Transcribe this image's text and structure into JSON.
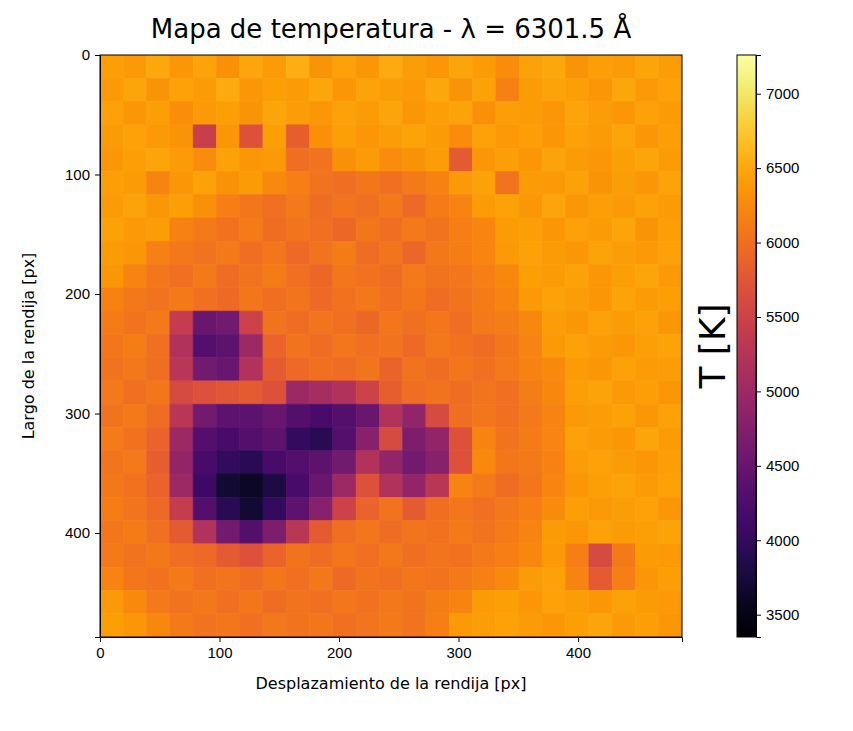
{
  "chart_data": {
    "type": "heatmap",
    "title": "Mapa de temperatura - λ = 6301.5 Å",
    "xlabel": "Desplazamiento de la rendija [px]",
    "ylabel": "Largo de la rendija [px]",
    "xlim": [
      0,
      487
    ],
    "ylim": [
      487,
      0
    ],
    "xticks": [
      0,
      100,
      200,
      300,
      400
    ],
    "yticks": [
      0,
      100,
      200,
      300,
      400
    ],
    "color": "inferno",
    "colorbar": {
      "label": "T [K]",
      "range": [
        3350,
        7260
      ],
      "ticks": [
        3500,
        4000,
        4500,
        5000,
        5500,
        6000,
        6500,
        7000
      ]
    },
    "cells": [
      [
        6420,
        6380,
        6510,
        6350,
        6460,
        6300,
        6490,
        6400,
        6550,
        6330,
        6440,
        6370,
        6520,
        6410,
        6360,
        6480,
        6390,
        6270,
        6450,
        6500,
        6340,
        6430,
        6390,
        6470,
        6410
      ],
      [
        6380,
        6470,
        6340,
        6450,
        6390,
        6520,
        6360,
        6430,
        6400,
        6490,
        6350,
        6460,
        6410,
        6380,
        6500,
        6330,
        6440,
        6170,
        6390,
        6460,
        6420,
        6350,
        6490,
        6380,
        6450
      ],
      [
        6450,
        6360,
        6430,
        6290,
        6380,
        6420,
        6330,
        6470,
        6410,
        6360,
        6440,
        6390,
        6480,
        6350,
        6420,
        6460,
        6310,
        6430,
        6390,
        6350,
        6470,
        6410,
        6360,
        6440,
        6400
      ],
      [
        6400,
        6450,
        6380,
        6340,
        5450,
        6360,
        5700,
        6420,
        5850,
        6300,
        6430,
        6370,
        6410,
        6460,
        6390,
        6280,
        6450,
        6380,
        6420,
        6360,
        6440,
        6390,
        6470,
        6350,
        6420
      ],
      [
        6360,
        6420,
        6470,
        6390,
        6280,
        6440,
        6350,
        6380,
        6000,
        6050,
        6300,
        6400,
        6280,
        6320,
        6410,
        5800,
        6370,
        6430,
        6350,
        6460,
        6400,
        6370,
        6420,
        6480,
        6390
      ],
      [
        6430,
        6390,
        6200,
        6360,
        6450,
        6320,
        6400,
        6250,
        6150,
        6050,
        6000,
        6080,
        6020,
        6100,
        6180,
        6380,
        6440,
        6050,
        6400,
        6380,
        6450,
        6340,
        6410,
        6370,
        6460
      ],
      [
        6390,
        6460,
        6350,
        6420,
        6300,
        6150,
        6080,
        6020,
        6100,
        5980,
        6060,
        6010,
        6090,
        5950,
        6120,
        6200,
        6390,
        6440,
        6360,
        6470,
        6350,
        6420,
        6380,
        6450,
        6400
      ],
      [
        6450,
        6380,
        6410,
        6180,
        6100,
        6030,
        6120,
        5990,
        6060,
        6010,
        5940,
        6080,
        6000,
        6110,
        6040,
        6150,
        6220,
        6400,
        6430,
        6360,
        6440,
        6390,
        6470,
        6330,
        6420
      ],
      [
        6400,
        6350,
        6170,
        6090,
        6040,
        6110,
        6000,
        6070,
        5960,
        6050,
        6120,
        5980,
        6060,
        5930,
        6090,
        6130,
        6210,
        6380,
        6450,
        6400,
        6370,
        6460,
        6410,
        6380,
        6440
      ],
      [
        6370,
        6200,
        6080,
        6020,
        6100,
        5990,
        6050,
        6120,
        6010,
        5940,
        6070,
        6030,
        5980,
        6100,
        6040,
        6080,
        6160,
        6230,
        6420,
        6390,
        6450,
        6350,
        6430,
        6470,
        6380
      ],
      [
        6180,
        6090,
        6040,
        6110,
        6020,
        5970,
        6080,
        6000,
        6060,
        5950,
        6030,
        6090,
        6010,
        6070,
        5990,
        6050,
        6120,
        6200,
        6380,
        6440,
        6410,
        6370,
        6460,
        6390,
        6420
      ],
      [
        6120,
        6050,
        6100,
        5400,
        4500,
        4600,
        5500,
        6050,
        5980,
        6060,
        6010,
        5940,
        6080,
        6020,
        6070,
        6000,
        6100,
        6140,
        6230,
        6410,
        6360,
        6440,
        6390,
        6450,
        6370
      ],
      [
        6080,
        6130,
        6020,
        5200,
        4300,
        4400,
        5000,
        5900,
        6040,
        5990,
        6070,
        6010,
        6050,
        5960,
        6090,
        6030,
        5990,
        6080,
        6200,
        6380,
        6450,
        6400,
        6350,
        6420,
        6460
      ],
      [
        6040,
        6090,
        6000,
        5300,
        4600,
        4500,
        5200,
        5800,
        5950,
        6020,
        5980,
        6060,
        5900,
        6040,
        5990,
        6070,
        6020,
        6110,
        6180,
        6250,
        6400,
        6370,
        6440,
        6390,
        6410
      ],
      [
        6100,
        6020,
        6070,
        5600,
        5700,
        5750,
        5800,
        5700,
        5000,
        5100,
        5200,
        5500,
        5850,
        6000,
        6050,
        5980,
        6060,
        6020,
        6130,
        6230,
        6420,
        6460,
        6380,
        6430,
        6370
      ],
      [
        6050,
        6110,
        5980,
        5300,
        4600,
        4400,
        4400,
        4500,
        4300,
        4200,
        4300,
        4500,
        5200,
        4900,
        5600,
        6000,
        6080,
        6010,
        6100,
        6200,
        6380,
        6410,
        6450,
        6360,
        6440
      ],
      [
        6120,
        6030,
        5900,
        5000,
        4300,
        4200,
        4300,
        4400,
        4000,
        3900,
        4300,
        4800,
        5600,
        4700,
        4900,
        5700,
        6200,
        6050,
        6120,
        6210,
        6440,
        6390,
        6360,
        6470,
        6400
      ],
      [
        6060,
        6100,
        5850,
        4900,
        4200,
        4000,
        3900,
        4200,
        4300,
        4400,
        4600,
        5200,
        4900,
        4600,
        4800,
        5700,
        6250,
        6070,
        6100,
        6180,
        6410,
        6450,
        6400,
        6350,
        6430
      ],
      [
        6090,
        6030,
        5900,
        5000,
        4100,
        3700,
        3600,
        3800,
        4200,
        4500,
        5000,
        5700,
        5200,
        4900,
        5300,
        6200,
        6100,
        5990,
        6080,
        6220,
        6370,
        6420,
        6460,
        6390,
        6440
      ],
      [
        6130,
        6060,
        5950,
        5400,
        4300,
        3900,
        3700,
        4000,
        4400,
        4800,
        5500,
        5900,
        6050,
        5800,
        6000,
        6080,
        6020,
        6090,
        6150,
        6260,
        6430,
        6380,
        6410,
        6450,
        6370
      ],
      [
        6070,
        6120,
        6010,
        5800,
        5200,
        4600,
        4300,
        4700,
        5300,
        5800,
        6000,
        6080,
        5990,
        6060,
        6030,
        6100,
        6040,
        6120,
        6200,
        6400,
        6350,
        6440,
        6390,
        6420,
        6460
      ],
      [
        6110,
        6040,
        6090,
        6000,
        5950,
        5800,
        5700,
        5900,
        6050,
        5980,
        6070,
        6020,
        6090,
        6000,
        6060,
        6030,
        6100,
        6150,
        6230,
        6380,
        6150,
        5600,
        6100,
        6400,
        6380
      ],
      [
        6200,
        6080,
        6030,
        6100,
        6010,
        6060,
        5990,
        6070,
        6020,
        6090,
        5960,
        6050,
        6010,
        6080,
        6040,
        6110,
        6170,
        6250,
        6400,
        6440,
        6200,
        5800,
        6150,
        6360,
        6420
      ],
      [
        6380,
        6250,
        6100,
        6040,
        6090,
        6020,
        6070,
        5980,
        6050,
        6010,
        6080,
        6030,
        6090,
        6040,
        6130,
        6200,
        6390,
        6430,
        6370,
        6450,
        6410,
        6360,
        6440,
        6400,
        6380
      ],
      [
        6420,
        6350,
        6230,
        6110,
        6050,
        6080,
        6020,
        6090,
        6040,
        6070,
        6010,
        6060,
        6100,
        6050,
        6160,
        6380,
        6410,
        6450,
        6390,
        6360,
        6430,
        6470,
        6380,
        6420,
        6350
      ]
    ]
  }
}
